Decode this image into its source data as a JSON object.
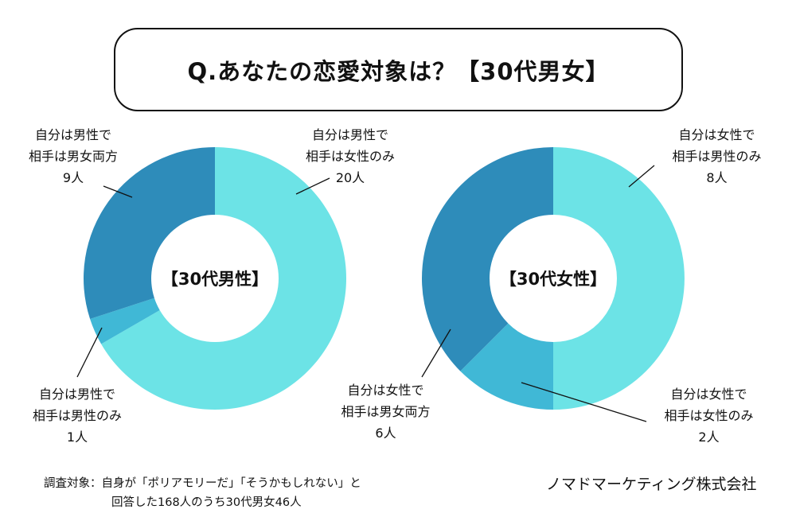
{
  "title": "Q.あなたの恋愛対象は？【30代男女】",
  "colors": {
    "light": "#6ce3e6",
    "medium": "#40b8d6",
    "dark": "#2e8cba"
  },
  "chart_data": [
    {
      "type": "pie",
      "title": "【30代男性】",
      "slices": [
        {
          "line1": "自分は男性で",
          "line2": "相手は女性のみ",
          "count_label": "20人",
          "value": 20,
          "color": "#6ce3e6"
        },
        {
          "line1": "自分は男性で",
          "line2": "相手は男性のみ",
          "count_label": "1人",
          "value": 1,
          "color": "#40b8d6"
        },
        {
          "line1": "自分は男性で",
          "line2": "相手は男女両方",
          "count_label": "9人",
          "value": 9,
          "color": "#2e8cba"
        }
      ]
    },
    {
      "type": "pie",
      "title": "【30代女性】",
      "slices": [
        {
          "line1": "自分は女性で",
          "line2": "相手は男性のみ",
          "count_label": "8人",
          "value": 8,
          "color": "#6ce3e6"
        },
        {
          "line1": "自分は女性で",
          "line2": "相手は女性のみ",
          "count_label": "2人",
          "value": 2,
          "color": "#40b8d6"
        },
        {
          "line1": "自分は女性で",
          "line2": "相手は男女両方",
          "count_label": "6人",
          "value": 6,
          "color": "#2e8cba"
        }
      ]
    }
  ],
  "footer": {
    "survey_line1": "調査対象：自身が「ポリアモリーだ」「そうかもしれない」と",
    "survey_line2": "回答した168人のうち30代男女46人",
    "company": "ノマドマーケティング株式会社"
  }
}
